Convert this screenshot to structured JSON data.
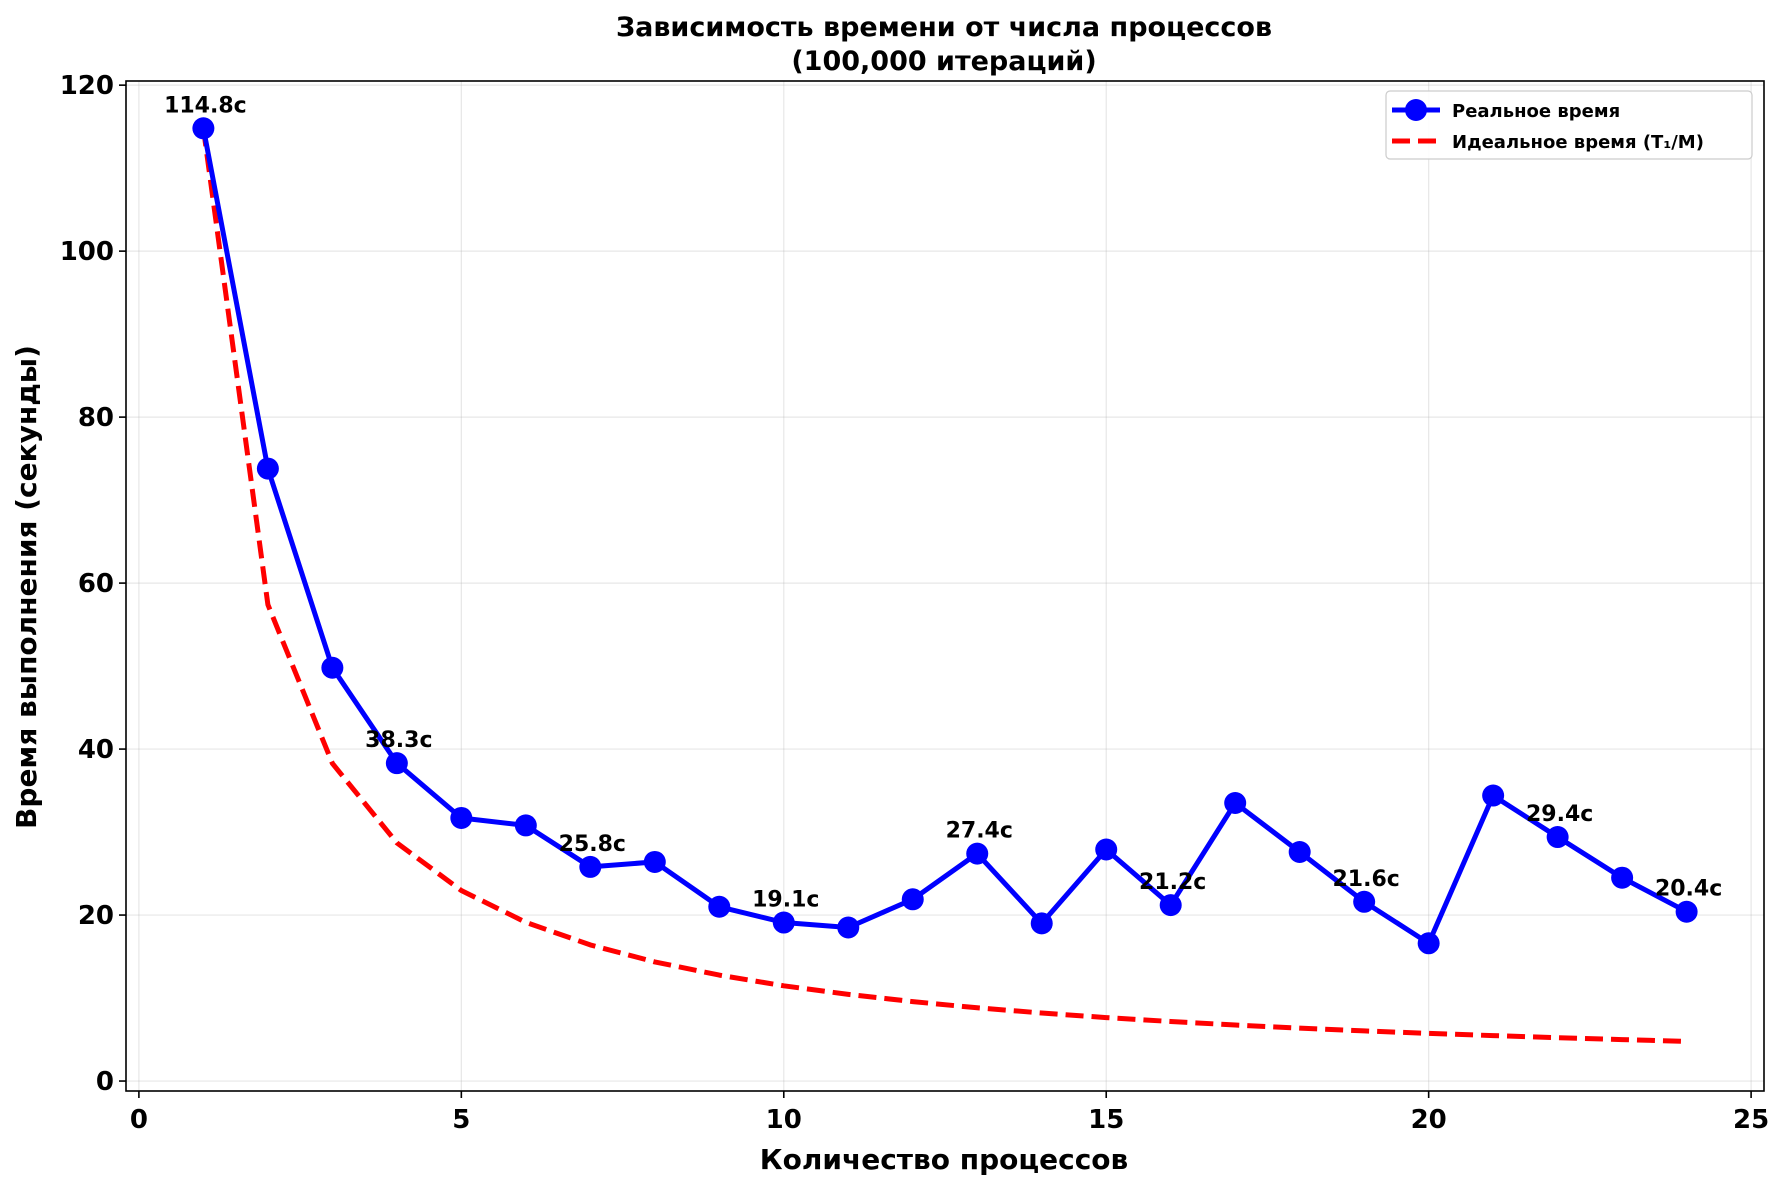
{
  "chart_data": {
    "type": "line",
    "title": "Зависимость времени от числа процессов",
    "subtitle": "(100,000 итераций)",
    "xlabel": "Количество процессов",
    "ylabel": "Время выполнения (секунды)",
    "xlim": [
      -0.2,
      25.2
    ],
    "ylim": [
      -1.2,
      120.5
    ],
    "xticks": [
      0,
      5,
      10,
      15,
      20,
      25
    ],
    "yticks": [
      0,
      20,
      40,
      60,
      80,
      100,
      120
    ],
    "grid": true,
    "legend_position": "top-right",
    "series": [
      {
        "name": "Реальное время",
        "style": "solid-with-markers",
        "color": "#0000ff",
        "x": [
          1,
          2,
          3,
          4,
          5,
          6,
          7,
          8,
          9,
          10,
          11,
          12,
          13,
          14,
          15,
          16,
          17,
          18,
          19,
          20,
          21,
          22,
          23,
          24
        ],
        "values": [
          114.8,
          73.8,
          49.8,
          38.3,
          31.7,
          30.8,
          25.8,
          26.4,
          21.0,
          19.1,
          18.5,
          21.9,
          27.4,
          19.0,
          27.9,
          21.2,
          33.5,
          27.6,
          21.6,
          16.6,
          34.4,
          29.4,
          24.5,
          20.4
        ]
      },
      {
        "name": "Идеальное время (T₁/M)",
        "style": "dashed",
        "color": "#ff0000",
        "x": [
          1,
          2,
          3,
          4,
          5,
          6,
          7,
          8,
          9,
          10,
          11,
          12,
          13,
          14,
          15,
          16,
          17,
          18,
          19,
          20,
          21,
          22,
          23,
          24
        ],
        "values": [
          114.8,
          57.4,
          38.27,
          28.7,
          22.96,
          19.13,
          16.4,
          14.35,
          12.76,
          11.48,
          10.44,
          9.57,
          8.83,
          8.2,
          7.65,
          7.18,
          6.75,
          6.38,
          6.04,
          5.74,
          5.47,
          5.22,
          4.99,
          4.78
        ]
      }
    ],
    "annotations": [
      {
        "x": 1,
        "y": 114.8,
        "text": "114.8с"
      },
      {
        "x": 4,
        "y": 38.3,
        "text": "38.3с"
      },
      {
        "x": 7,
        "y": 25.8,
        "text": "25.8с"
      },
      {
        "x": 10,
        "y": 19.1,
        "text": "19.1с"
      },
      {
        "x": 13,
        "y": 27.4,
        "text": "27.4с"
      },
      {
        "x": 16,
        "y": 21.2,
        "text": "21.2с"
      },
      {
        "x": 19,
        "y": 21.6,
        "text": "21.6с"
      },
      {
        "x": 22,
        "y": 29.4,
        "text": "29.4с"
      },
      {
        "x": 24,
        "y": 20.4,
        "text": "20.4с"
      }
    ]
  }
}
